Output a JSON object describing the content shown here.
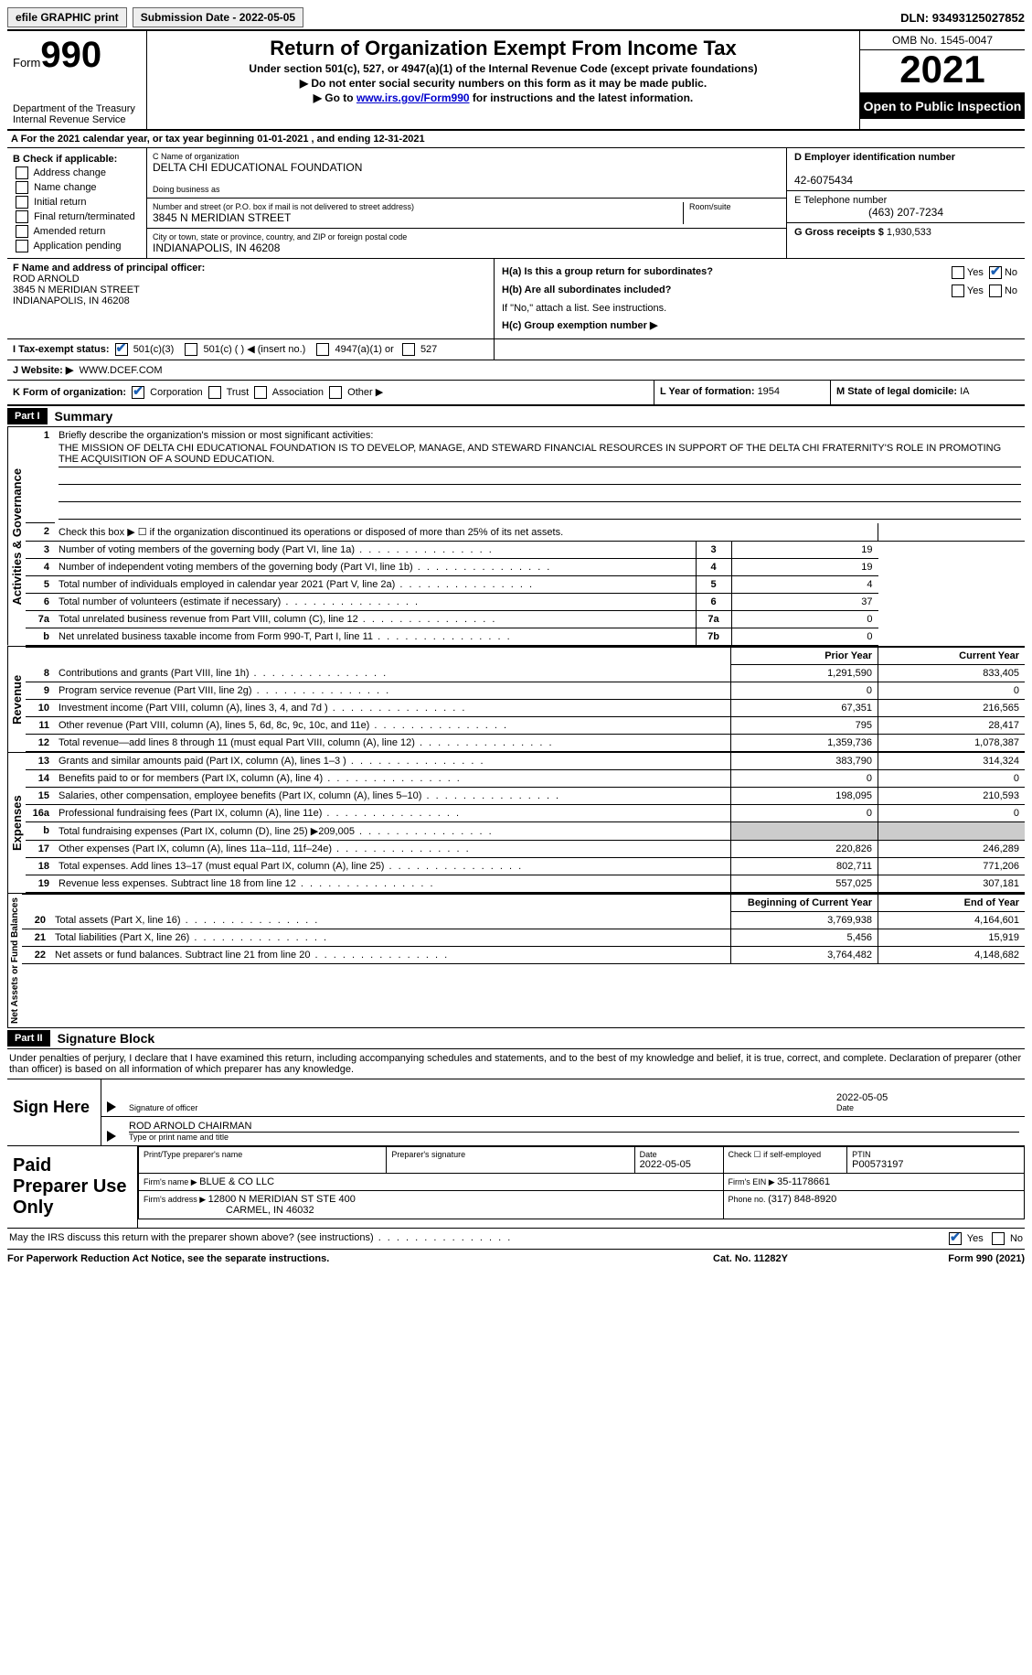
{
  "topbar": {
    "efile": "efile GRAPHIC print",
    "subdate_label": "Submission Date - ",
    "subdate": "2022-05-05",
    "dln_label": "DLN: ",
    "dln": "93493125027852"
  },
  "header": {
    "form_label": "Form",
    "form_no": "990",
    "dept": "Department of the Treasury",
    "irs": "Internal Revenue Service",
    "title": "Return of Organization Exempt From Income Tax",
    "subtitle": "Under section 501(c), 527, or 4947(a)(1) of the Internal Revenue Code (except private foundations)",
    "note1": "▶ Do not enter social security numbers on this form as it may be made public.",
    "note2_pre": "▶ Go to ",
    "note2_link": "www.irs.gov/Form990",
    "note2_post": " for instructions and the latest information.",
    "omb": "OMB No. 1545-0047",
    "year": "2021",
    "open": "Open to Public Inspection"
  },
  "rowA": {
    "text_pre": "A For the 2021 calendar year, or tax year beginning ",
    "begin": "01-01-2021",
    "mid": " , and ending ",
    "end": "12-31-2021"
  },
  "colB": {
    "label": "B Check if applicable:",
    "items": [
      "Address change",
      "Name change",
      "Initial return",
      "Final return/terminated",
      "Amended return",
      "Application pending"
    ]
  },
  "colC": {
    "name_label": "C Name of organization",
    "name": "DELTA CHI EDUCATIONAL FOUNDATION",
    "dba_label": "Doing business as",
    "dba": "",
    "street_label": "Number and street (or P.O. box if mail is not delivered to street address)",
    "room_label": "Room/suite",
    "street": "3845 N MERIDIAN STREET",
    "city_label": "City or town, state or province, country, and ZIP or foreign postal code",
    "city": "INDIANAPOLIS, IN  46208"
  },
  "colD": {
    "ein_label": "D Employer identification number",
    "ein": "42-6075434",
    "tel_label": "E Telephone number",
    "tel": "(463) 207-7234",
    "gross_label": "G Gross receipts $ ",
    "gross": "1,930,533"
  },
  "secF": {
    "label": "F Name and address of principal officer:",
    "name": "ROD ARNOLD",
    "street": "3845 N MERIDIAN STREET",
    "city": "INDIANAPOLIS, IN  46208"
  },
  "secH": {
    "ha": "H(a)  Is this a group return for subordinates?",
    "hb": "H(b)  Are all subordinates included?",
    "hb_note": "If \"No,\" attach a list. See instructions.",
    "hc": "H(c)  Group exemption number ▶",
    "yes": "Yes",
    "no": "No"
  },
  "rowI": {
    "label": "I  Tax-exempt status:",
    "o1": "501(c)(3)",
    "o2": "501(c) (  ) ◀ (insert no.)",
    "o3": "4947(a)(1) or",
    "o4": "527"
  },
  "rowJ": {
    "label": "J  Website: ▶",
    "val": "WWW.DCEF.COM"
  },
  "rowK": {
    "label": "K Form of organization:",
    "o1": "Corporation",
    "o2": "Trust",
    "o3": "Association",
    "o4": "Other ▶",
    "l_label": "L Year of formation: ",
    "l_val": "1954",
    "m_label": "M State of legal domicile: ",
    "m_val": "IA"
  },
  "part1": {
    "hdr": "Part I",
    "title": "Summary"
  },
  "mission": {
    "num": "1",
    "label": "Briefly describe the organization's mission or most significant activities:",
    "text": "THE MISSION OF DELTA CHI EDUCATIONAL FOUNDATION IS TO DEVELOP, MANAGE, AND STEWARD FINANCIAL RESOURCES IN SUPPORT OF THE DELTA CHI FRATERNITY'S ROLE IN PROMOTING THE ACQUISITION OF A SOUND EDUCATION."
  },
  "lines_ag": [
    {
      "n": "2",
      "t": "Check this box ▶ ☐ if the organization discontinued its operations or disposed of more than 25% of its net assets.",
      "ln": "",
      "v": ""
    },
    {
      "n": "3",
      "t": "Number of voting members of the governing body (Part VI, line 1a)",
      "ln": "3",
      "v": "19"
    },
    {
      "n": "4",
      "t": "Number of independent voting members of the governing body (Part VI, line 1b)",
      "ln": "4",
      "v": "19"
    },
    {
      "n": "5",
      "t": "Total number of individuals employed in calendar year 2021 (Part V, line 2a)",
      "ln": "5",
      "v": "4"
    },
    {
      "n": "6",
      "t": "Total number of volunteers (estimate if necessary)",
      "ln": "6",
      "v": "37"
    },
    {
      "n": "7a",
      "t": "Total unrelated business revenue from Part VIII, column (C), line 12",
      "ln": "7a",
      "v": "0"
    },
    {
      "n": "b",
      "t": "Net unrelated business taxable income from Form 990-T, Part I, line 11",
      "ln": "7b",
      "v": "0"
    }
  ],
  "colhdr": {
    "prior": "Prior Year",
    "curr": "Current Year"
  },
  "lines_rev": [
    {
      "n": "8",
      "t": "Contributions and grants (Part VIII, line 1h)",
      "p": "1,291,590",
      "c": "833,405"
    },
    {
      "n": "9",
      "t": "Program service revenue (Part VIII, line 2g)",
      "p": "0",
      "c": "0"
    },
    {
      "n": "10",
      "t": "Investment income (Part VIII, column (A), lines 3, 4, and 7d )",
      "p": "67,351",
      "c": "216,565"
    },
    {
      "n": "11",
      "t": "Other revenue (Part VIII, column (A), lines 5, 6d, 8c, 9c, 10c, and 11e)",
      "p": "795",
      "c": "28,417"
    },
    {
      "n": "12",
      "t": "Total revenue—add lines 8 through 11 (must equal Part VIII, column (A), line 12)",
      "p": "1,359,736",
      "c": "1,078,387"
    }
  ],
  "lines_exp": [
    {
      "n": "13",
      "t": "Grants and similar amounts paid (Part IX, column (A), lines 1–3 )",
      "p": "383,790",
      "c": "314,324"
    },
    {
      "n": "14",
      "t": "Benefits paid to or for members (Part IX, column (A), line 4)",
      "p": "0",
      "c": "0"
    },
    {
      "n": "15",
      "t": "Salaries, other compensation, employee benefits (Part IX, column (A), lines 5–10)",
      "p": "198,095",
      "c": "210,593"
    },
    {
      "n": "16a",
      "t": "Professional fundraising fees (Part IX, column (A), line 11e)",
      "p": "0",
      "c": "0"
    },
    {
      "n": "b",
      "t": "Total fundraising expenses (Part IX, column (D), line 25) ▶209,005",
      "p": "",
      "c": "",
      "grey": true
    },
    {
      "n": "17",
      "t": "Other expenses (Part IX, column (A), lines 11a–11d, 11f–24e)",
      "p": "220,826",
      "c": "246,289"
    },
    {
      "n": "18",
      "t": "Total expenses. Add lines 13–17 (must equal Part IX, column (A), line 25)",
      "p": "802,711",
      "c": "771,206"
    },
    {
      "n": "19",
      "t": "Revenue less expenses. Subtract line 18 from line 12",
      "p": "557,025",
      "c": "307,181"
    }
  ],
  "colhdr2": {
    "prior": "Beginning of Current Year",
    "curr": "End of Year"
  },
  "lines_net": [
    {
      "n": "20",
      "t": "Total assets (Part X, line 16)",
      "p": "3,769,938",
      "c": "4,164,601"
    },
    {
      "n": "21",
      "t": "Total liabilities (Part X, line 26)",
      "p": "5,456",
      "c": "15,919"
    },
    {
      "n": "22",
      "t": "Net assets or fund balances. Subtract line 21 from line 20",
      "p": "3,764,482",
      "c": "4,148,682"
    }
  ],
  "side": {
    "ag": "Activities & Governance",
    "rev": "Revenue",
    "exp": "Expenses",
    "net": "Net Assets or Fund Balances"
  },
  "part2": {
    "hdr": "Part II",
    "title": "Signature Block"
  },
  "penalty": "Under penalties of perjury, I declare that I have examined this return, including accompanying schedules and statements, and to the best of my knowledge and belief, it is true, correct, and complete. Declaration of preparer (other than officer) is based on all information of which preparer has any knowledge.",
  "sign": {
    "here": "Sign Here",
    "sig_label": "Signature of officer",
    "date_label": "Date",
    "date": "2022-05-05",
    "name": "ROD ARNOLD  CHAIRMAN",
    "name_label": "Type or print name and title"
  },
  "prep": {
    "here": "Paid Preparer Use Only",
    "pname_label": "Print/Type preparer's name",
    "pname": "",
    "psig_label": "Preparer's signature",
    "pdate_label": "Date",
    "pdate": "2022-05-05",
    "check_label": "Check ☐ if self-employed",
    "ptin_label": "PTIN",
    "ptin": "P00573197",
    "firm_label": "Firm's name    ▶ ",
    "firm": "BLUE & CO LLC",
    "fein_label": "Firm's EIN ▶ ",
    "fein": "35-1178661",
    "faddr_label": "Firm's address ▶ ",
    "faddr1": "12800 N MERIDIAN ST STE 400",
    "faddr2": "CARMEL, IN  46032",
    "fphone_label": "Phone no. ",
    "fphone": "(317) 848-8920"
  },
  "discuss": {
    "q": "May the IRS discuss this return with the preparer shown above? (see instructions)",
    "yes": "Yes",
    "no": "No"
  },
  "footer": {
    "notice": "For Paperwork Reduction Act Notice, see the separate instructions.",
    "cat": "Cat. No. 11282Y",
    "form": "Form 990 (2021)"
  },
  "colors": {
    "link": "#0000cc",
    "accent": "#1a5fb4"
  }
}
